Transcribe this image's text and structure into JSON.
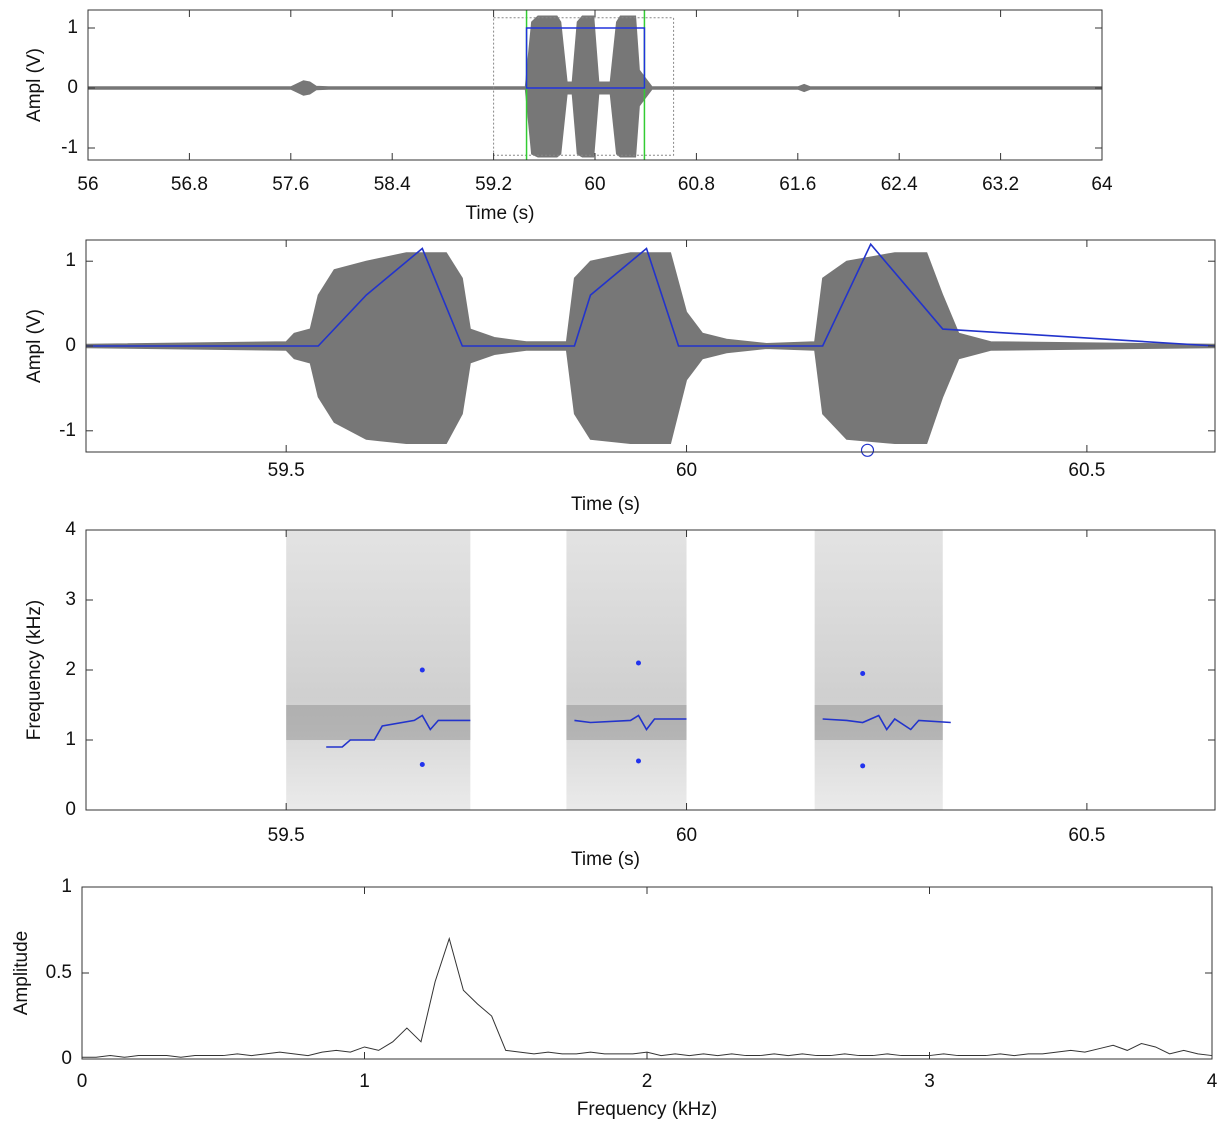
{
  "chart_data": [
    {
      "type": "waveform",
      "x_label": "Time (s)",
      "y_label": "Ampl (V)",
      "xlim": [
        56,
        64
      ],
      "ylim": [
        -1.2,
        1.3
      ],
      "xticks": [
        56,
        56.8,
        57.6,
        58.4,
        59.2,
        60,
        60.8,
        61.6,
        62.4,
        63.2,
        64
      ],
      "yticks": [
        -1,
        0,
        1
      ],
      "envelope": {
        "color": "#777777",
        "x": [
          56,
          57.6,
          57.7,
          57.75,
          57.8,
          57.9,
          59.45,
          59.5,
          59.55,
          59.7,
          59.73,
          59.78,
          59.82,
          59.86,
          59.9,
          59.99,
          60.03,
          60.12,
          60.17,
          60.2,
          60.32,
          60.35,
          60.45,
          61.6,
          61.65,
          61.7,
          64
        ],
        "upper": [
          0.02,
          0.02,
          0.12,
          0.1,
          0.03,
          0.02,
          0.02,
          1.1,
          1.2,
          1.2,
          1.1,
          0.1,
          0.1,
          1.1,
          1.2,
          1.2,
          0.1,
          0.1,
          1.1,
          1.2,
          1.2,
          0.3,
          0.02,
          0.02,
          0.06,
          0.02,
          0.02
        ],
        "lower": [
          -0.02,
          -0.02,
          -0.12,
          -0.1,
          -0.03,
          -0.02,
          -0.02,
          -1.1,
          -1.15,
          -1.15,
          -1.1,
          -0.1,
          -0.1,
          -1.1,
          -1.15,
          -1.15,
          -0.1,
          -0.1,
          -1.1,
          -1.15,
          -1.15,
          -0.3,
          -0.02,
          -0.02,
          -0.06,
          -0.02,
          -0.02
        ]
      },
      "selection": {
        "color": "#2233dd",
        "x": [
          59.46,
          60.39
        ],
        "y": [
          0,
          1
        ]
      },
      "cursors": {
        "color": "#33cc33",
        "x": [
          59.46,
          60.39
        ]
      },
      "view_box": {
        "color": "#888888",
        "x": [
          59.2,
          60.62
        ],
        "y": [
          -1.12,
          1.17
        ]
      }
    },
    {
      "type": "waveform",
      "x_label": "Time (s)",
      "y_label": "Ampl (V)",
      "xlim": [
        59.25,
        60.66
      ],
      "ylim": [
        -1.25,
        1.25
      ],
      "xticks": [
        59.5,
        60,
        60.5
      ],
      "yticks": [
        -1,
        0,
        1
      ],
      "envelope": {
        "color": "#777777",
        "x": [
          59.25,
          59.5,
          59.51,
          59.53,
          59.54,
          59.56,
          59.6,
          59.65,
          59.7,
          59.72,
          59.73,
          59.76,
          59.8,
          59.85,
          59.86,
          59.88,
          59.93,
          59.98,
          60.0,
          60.02,
          60.05,
          60.1,
          60.16,
          60.17,
          60.2,
          60.26,
          60.3,
          60.32,
          60.34,
          60.38,
          60.66
        ],
        "upper": [
          0.02,
          0.05,
          0.15,
          0.2,
          0.6,
          0.9,
          1.0,
          1.1,
          1.1,
          0.8,
          0.2,
          0.1,
          0.05,
          0.05,
          0.8,
          1.0,
          1.1,
          1.1,
          0.4,
          0.15,
          0.08,
          0.03,
          0.05,
          0.8,
          1.0,
          1.1,
          1.1,
          0.6,
          0.15,
          0.05,
          0.02
        ],
        "lower": [
          -0.02,
          -0.05,
          -0.15,
          -0.2,
          -0.6,
          -0.9,
          -1.1,
          -1.15,
          -1.15,
          -0.8,
          -0.2,
          -0.1,
          -0.05,
          -0.05,
          -0.8,
          -1.1,
          -1.15,
          -1.15,
          -0.4,
          -0.15,
          -0.08,
          -0.03,
          -0.05,
          -0.8,
          -1.1,
          -1.15,
          -1.15,
          -0.6,
          -0.15,
          -0.05,
          -0.02
        ]
      },
      "trace": {
        "color": "#2233cc",
        "x": [
          59.25,
          59.54,
          59.6,
          59.67,
          59.72,
          59.86,
          59.88,
          59.95,
          59.99,
          60.17,
          60.23,
          60.32,
          60.66
        ],
        "y": [
          0,
          0,
          0.6,
          1.15,
          0,
          0,
          0.6,
          1.15,
          0,
          0,
          1.2,
          0.2,
          0
        ]
      },
      "marker": {
        "color": "#2233cc",
        "x": 60.226,
        "y": -1.23
      }
    },
    {
      "type": "spectrogram",
      "x_label": "Time (s)",
      "y_label": "Frequency (kHz)",
      "xlim": [
        59.25,
        60.66
      ],
      "ylim": [
        0,
        4
      ],
      "xticks": [
        59.5,
        60,
        60.5
      ],
      "yticks": [
        0,
        1,
        2,
        3,
        4
      ],
      "bursts": [
        [
          59.5,
          59.73
        ],
        [
          59.85,
          60.0
        ],
        [
          60.16,
          60.32
        ]
      ],
      "formant_band": [
        1.0,
        1.5
      ],
      "pitch": [
        {
          "color": "#2233cc",
          "x": [
            59.55,
            59.57,
            59.58,
            59.61,
            59.62,
            59.66,
            59.67,
            59.68,
            59.69,
            59.73
          ],
          "y": [
            0.9,
            0.9,
            1.0,
            1.0,
            1.2,
            1.28,
            1.35,
            1.15,
            1.28,
            1.28
          ]
        },
        {
          "color": "#2233cc",
          "x": [
            59.86,
            59.88,
            59.93,
            59.94,
            59.95,
            59.96,
            60.0
          ],
          "y": [
            1.28,
            1.25,
            1.28,
            1.35,
            1.15,
            1.3,
            1.3
          ]
        },
        {
          "color": "#2233cc",
          "x": [
            60.17,
            60.2,
            60.22,
            60.24,
            60.25,
            60.26,
            60.28,
            60.29,
            60.33
          ],
          "y": [
            1.3,
            1.28,
            1.25,
            1.35,
            1.15,
            1.3,
            1.15,
            1.28,
            1.25
          ]
        }
      ],
      "points": {
        "color": "#2233ee",
        "x": [
          59.67,
          59.67,
          59.94,
          59.94,
          60.22,
          60.22
        ],
        "y": [
          2.0,
          0.65,
          2.1,
          0.7,
          1.95,
          0.63
        ]
      }
    },
    {
      "type": "line",
      "x_label": "Frequency (kHz)",
      "y_label": "Amplitude",
      "xlim": [
        0,
        4
      ],
      "ylim": [
        0,
        1
      ],
      "xticks": [
        0,
        1,
        2,
        3,
        4
      ],
      "yticks": [
        0,
        0.5,
        1
      ],
      "color": "#333333",
      "x": [
        0,
        0.05,
        0.1,
        0.15,
        0.2,
        0.25,
        0.3,
        0.35,
        0.4,
        0.45,
        0.5,
        0.55,
        0.6,
        0.65,
        0.7,
        0.75,
        0.8,
        0.85,
        0.9,
        0.95,
        1.0,
        1.05,
        1.1,
        1.15,
        1.2,
        1.25,
        1.3,
        1.35,
        1.4,
        1.45,
        1.5,
        1.55,
        1.6,
        1.65,
        1.7,
        1.75,
        1.8,
        1.85,
        1.9,
        1.95,
        2.0,
        2.05,
        2.1,
        2.15,
        2.2,
        2.25,
        2.3,
        2.35,
        2.4,
        2.45,
        2.5,
        2.55,
        2.6,
        2.65,
        2.7,
        2.75,
        2.8,
        2.85,
        2.9,
        2.95,
        3.0,
        3.05,
        3.1,
        3.15,
        3.2,
        3.25,
        3.3,
        3.35,
        3.4,
        3.45,
        3.5,
        3.55,
        3.6,
        3.65,
        3.7,
        3.75,
        3.8,
        3.85,
        3.9,
        3.95,
        4.0
      ],
      "values": [
        0.01,
        0.01,
        0.02,
        0.01,
        0.02,
        0.02,
        0.02,
        0.01,
        0.02,
        0.02,
        0.02,
        0.03,
        0.02,
        0.03,
        0.04,
        0.03,
        0.02,
        0.04,
        0.05,
        0.04,
        0.07,
        0.05,
        0.1,
        0.18,
        0.1,
        0.45,
        0.7,
        0.4,
        0.32,
        0.25,
        0.05,
        0.04,
        0.03,
        0.04,
        0.03,
        0.03,
        0.04,
        0.03,
        0.03,
        0.03,
        0.04,
        0.02,
        0.03,
        0.02,
        0.03,
        0.02,
        0.03,
        0.02,
        0.02,
        0.03,
        0.02,
        0.03,
        0.02,
        0.02,
        0.03,
        0.02,
        0.02,
        0.03,
        0.02,
        0.02,
        0.02,
        0.03,
        0.02,
        0.02,
        0.02,
        0.03,
        0.02,
        0.03,
        0.03,
        0.04,
        0.05,
        0.04,
        0.06,
        0.08,
        0.05,
        0.09,
        0.07,
        0.03,
        0.05,
        0.03,
        0.02
      ]
    }
  ]
}
